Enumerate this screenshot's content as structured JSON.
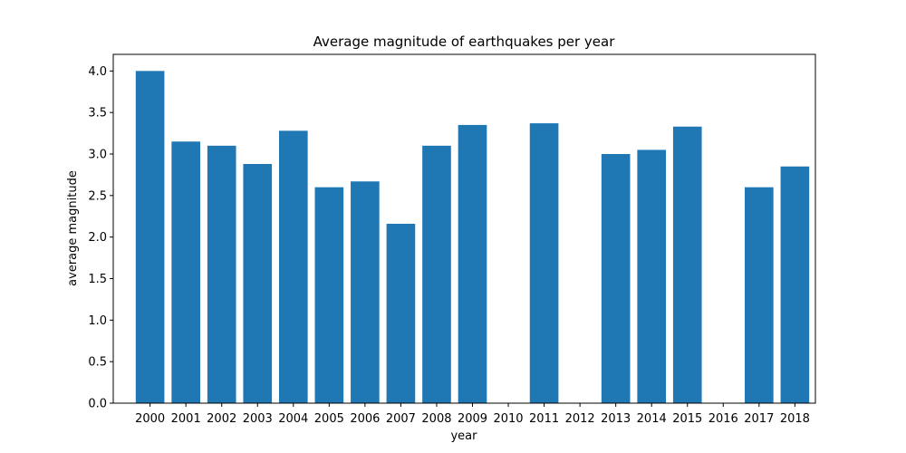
{
  "chart_data": {
    "type": "bar",
    "title": "Average magnitude of earthquakes per year",
    "xlabel": "year",
    "ylabel": "average magnitude",
    "categories": [
      "2000",
      "2001",
      "2002",
      "2003",
      "2004",
      "2005",
      "2006",
      "2007",
      "2008",
      "2009",
      "2010",
      "2011",
      "2012",
      "2013",
      "2014",
      "2015",
      "2016",
      "2017",
      "2018"
    ],
    "values": [
      4.0,
      3.15,
      3.1,
      2.88,
      3.28,
      2.6,
      2.67,
      2.16,
      3.1,
      3.35,
      null,
      3.37,
      null,
      3.0,
      3.05,
      3.33,
      null,
      2.6,
      2.85
    ],
    "yticks": [
      "0.0",
      "0.5",
      "1.0",
      "1.5",
      "2.0",
      "2.5",
      "3.0",
      "3.5",
      "4.0"
    ],
    "ylim": [
      0,
      4.2
    ],
    "bar_color": "#1f77b4",
    "grid": false,
    "legend": "none"
  }
}
